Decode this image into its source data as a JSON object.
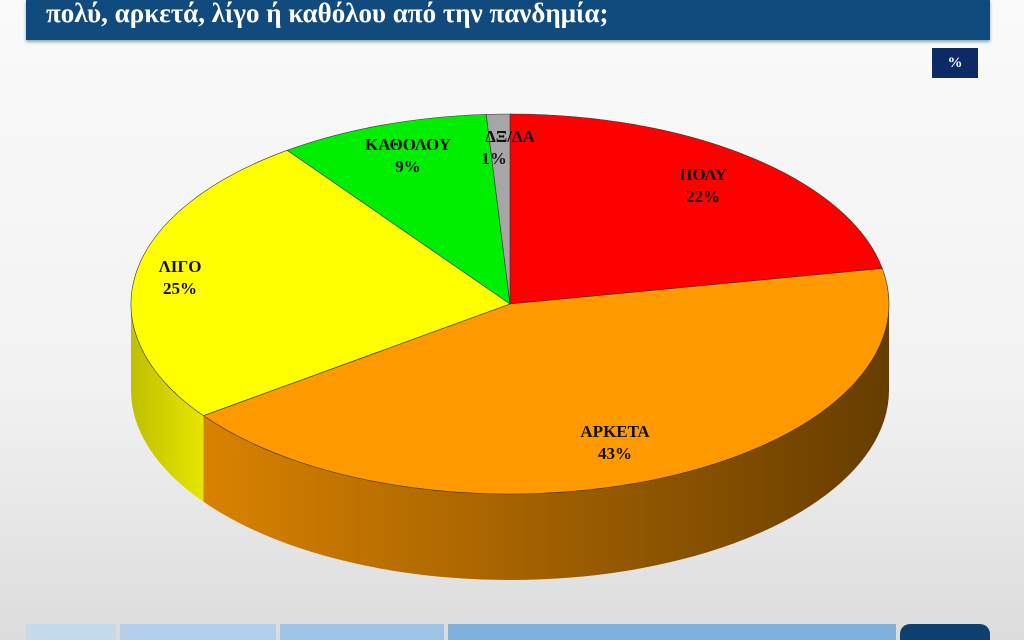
{
  "header": {
    "title": "πολύ, αρκετά, λίγο ή καθόλου από την πανδημία;",
    "unit_badge": "%"
  },
  "chart_data": {
    "type": "pie",
    "style": "3d",
    "start": "12 o'clock, clockwise",
    "unit": "%",
    "slices": [
      {
        "label": "ΠΟΛΥ",
        "value": 22,
        "display": "22%",
        "color": "#ff0000"
      },
      {
        "label": "ΑΡΚΕΤΑ",
        "value": 43,
        "display": "43%",
        "color": "#ff9900"
      },
      {
        "label": "ΛΙΓΟ",
        "value": 25,
        "display": "25%",
        "color": "#ffff00"
      },
      {
        "label": "ΚΑΘΟΛΟΥ",
        "value": 9,
        "display": "9%",
        "color": "#00ee00"
      },
      {
        "label": "ΔΞ/ΔΑ",
        "value": 1,
        "display": "1%",
        "color": "#a6a6a6"
      }
    ]
  },
  "footer": {
    "colors": [
      "#c5dbec",
      "#b3cfeb",
      "#9dc3e6",
      "#7fb1dc",
      "#0f3f6e"
    ]
  }
}
